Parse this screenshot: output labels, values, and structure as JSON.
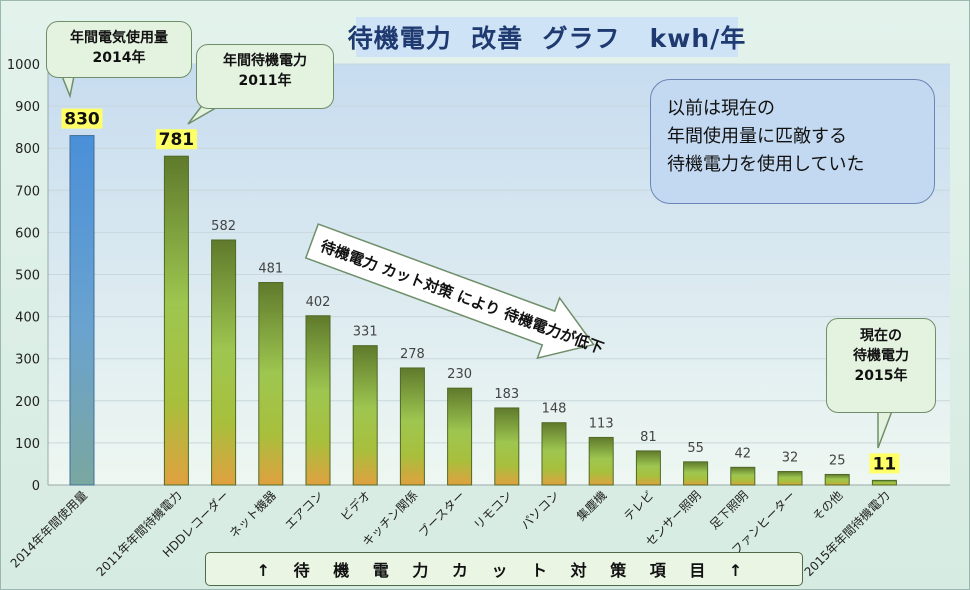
{
  "title": "待機電力  改善  グラフ   kwh/年",
  "chart_data": {
    "type": "bar",
    "ylim": [
      0,
      1000
    ],
    "yticks": [
      0,
      100,
      200,
      300,
      400,
      500,
      600,
      700,
      800,
      900,
      1000
    ],
    "grid": true,
    "categories": [
      "2014年年間使用量",
      "",
      "2011年年間待機電力",
      "HDDレコーダー",
      "ネット機器",
      "エアコン",
      "ビデオ",
      "キッチン関係",
      "ブースター",
      "リモコン",
      "パソコン",
      "集塵機",
      "テレビ",
      "センサー照明",
      "足下照明",
      "ファンヒーター",
      "その他",
      "2015年年間待機電力"
    ],
    "values": [
      830,
      null,
      781,
      582,
      481,
      402,
      331,
      278,
      230,
      183,
      148,
      113,
      81,
      55,
      42,
      32,
      25,
      11
    ],
    "highlighted_labels": [
      0,
      2,
      17
    ],
    "colors": {
      "blue_bar": "#5b9bd5",
      "green_bar": "#76923c",
      "orange_bottom": "#e0a040",
      "highlight": "#ffff66"
    }
  },
  "callouts": {
    "usage_2014": "年間電気使用量\n2014年",
    "standby_2011": "年間待機電力\n2011年",
    "standby_now": "現在の\n待機電力\n2015年"
  },
  "arrow_text": "待機電力 カット対策 により 待機電力が低下",
  "note": "以前は現在の\n年間使用量に匹敵する\n待機電力を使用していた",
  "footer": "↑ 待 機 電 力 カ ッ ト 対 策 項 目 ↑"
}
